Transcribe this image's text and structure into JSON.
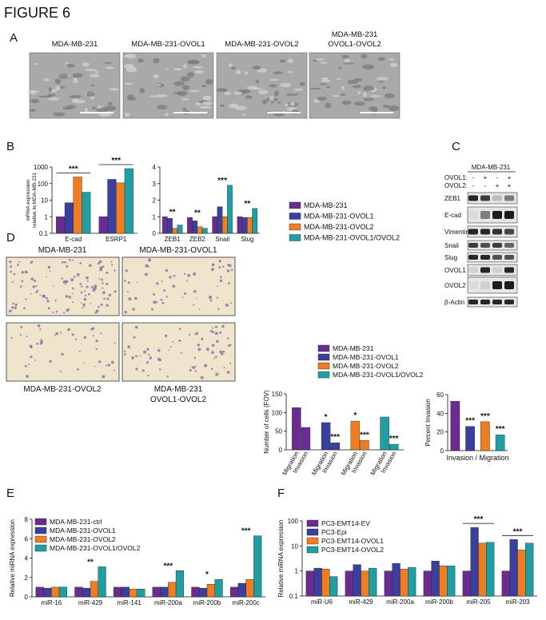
{
  "figure_title": "FIGURE 6",
  "panel_labels": [
    "A",
    "B",
    "C",
    "D",
    "E",
    "F"
  ],
  "panel_a": {
    "captions": [
      [
        "MDA-MB-231"
      ],
      [
        "MDA-MB-231-OVOL1"
      ],
      [
        "MDA-MB-231-OVOL2"
      ],
      [
        "MDA-MB-231",
        "OVOL1-OVOL2"
      ]
    ]
  },
  "blot": {
    "cell_line": "MDA-MB-231",
    "conditions": [
      {
        "label": "OVOL1:",
        "lanes": [
          "-",
          "+",
          "-",
          "+"
        ]
      },
      {
        "label": "OVOL2:",
        "lanes": [
          "-",
          "-",
          "+",
          "+"
        ]
      }
    ],
    "rows": [
      "ZEB1",
      "E-cad",
      "Vimentin",
      "Snail",
      "Slug",
      "OVOL1",
      "OVOL2",
      "β-Actin"
    ]
  },
  "panel_d": {
    "captions": [
      [
        "MDA-MB-231"
      ],
      [
        "MDA-MB-231-OVOL1"
      ],
      [
        "MDA-MB-231-OVOL2"
      ],
      [
        "MDA-MB-231",
        "OVOL1-OVOL2"
      ]
    ]
  },
  "chart_data": [
    {
      "type": "bar",
      "ylabel": [
        "mRNA expression",
        "relative to MDA-MB-231"
      ],
      "log_scale": true,
      "categories": [
        "E-cad",
        "ESRP1"
      ],
      "series": [
        {
          "name": "MDA-MB-231",
          "color": "#6a2c91",
          "values": [
            1,
            1
          ]
        },
        {
          "name": "MDA-MB-231-OVOL1",
          "color": "#3b3f9e",
          "values": [
            7,
            180
          ]
        },
        {
          "name": "MDA-MB-231-OVOL2",
          "color": "#f07d22",
          "values": [
            250,
            110
          ]
        },
        {
          "name": "MDA-MB-231-OVOL1/OVOL2",
          "color": "#1f9ea3",
          "values": [
            30,
            800
          ]
        }
      ],
      "ylim": [
        0.1,
        1000
      ],
      "yticks": [
        0.1,
        1,
        10,
        100,
        1000
      ],
      "significance": [
        "***",
        "***"
      ]
    },
    {
      "type": "bar",
      "categories": [
        "ZEB1",
        "ZEB2",
        "Snail",
        "Slug"
      ],
      "series": [
        {
          "color": "#6a2c91",
          "values": [
            1.0,
            0.95,
            1.0,
            1.0
          ]
        },
        {
          "color": "#3b3f9e",
          "values": [
            0.9,
            0.75,
            1.6,
            0.95
          ]
        },
        {
          "color": "#f07d22",
          "values": [
            0.3,
            0.4,
            1.0,
            0.95
          ]
        },
        {
          "color": "#1f9ea3",
          "values": [
            0.5,
            0.3,
            2.9,
            1.5
          ]
        }
      ],
      "ylim": [
        0,
        4
      ],
      "yticks": [
        0,
        1,
        2,
        3,
        4
      ],
      "significance": [
        "**",
        "**",
        "***",
        "**"
      ]
    },
    {
      "type": "bar",
      "ylabel": "Number of cells (FOV)",
      "categories": [
        "Migration",
        "Invasion"
      ],
      "series": [
        {
          "name": "MDA-MB-231",
          "color": "#6a2c91",
          "values": [
            113,
            60
          ],
          "significance": [
            null,
            null
          ]
        },
        {
          "name": "MDA-MB-231-OVOL1",
          "color": "#3b3f9e",
          "values": [
            73,
            19
          ],
          "significance": [
            "*",
            "***"
          ]
        },
        {
          "name": "MDA-MB-231-OVOL2",
          "color": "#f07d22",
          "values": [
            77,
            25
          ],
          "significance": [
            "*",
            "***"
          ]
        },
        {
          "name": "MDA-MB-231-OVOL1/OVOL2",
          "color": "#1f9ea3",
          "values": [
            88,
            15
          ],
          "significance": [
            null,
            "***"
          ]
        }
      ],
      "ylim": [
        0,
        150
      ],
      "yticks": [
        0,
        50,
        100,
        150
      ]
    },
    {
      "type": "bar",
      "ylabel": "Percent Invasion",
      "xlabel": "Invasion / Migration",
      "colors": [
        "#6a2c91",
        "#3b3f9e",
        "#f07d22",
        "#1f9ea3"
      ],
      "values": [
        53,
        26,
        31,
        17
      ],
      "significance": [
        null,
        "***",
        "***",
        "***"
      ],
      "ylim": [
        0,
        60
      ],
      "yticks": [
        0,
        20,
        40,
        60
      ]
    },
    {
      "type": "bar",
      "ylabel": "Relative miRNA expression",
      "categories": [
        "miR-16",
        "miR-429",
        "miR-141",
        "miR-200a",
        "miR-200b",
        "miR-200c"
      ],
      "series": [
        {
          "name": "MDA-MB-231-ctrl",
          "color": "#6a2c91",
          "values": [
            1.0,
            1.0,
            1.0,
            1.0,
            1.0,
            1.0
          ]
        },
        {
          "name": "MDA-MB-231-OVOL1",
          "color": "#3b3f9e",
          "values": [
            0.9,
            0.9,
            1.0,
            1.0,
            0.9,
            1.4
          ]
        },
        {
          "name": "MDA-MB-231-OVOL2",
          "color": "#f07d22",
          "values": [
            1.0,
            1.6,
            0.8,
            1.5,
            1.3,
            1.8
          ]
        },
        {
          "name": "MDA-MB-231-OVOL1/OVOL2",
          "color": "#1f9ea3",
          "values": [
            1.0,
            3.1,
            0.8,
            2.7,
            1.8,
            6.3
          ]
        }
      ],
      "ylim": [
        0,
        8
      ],
      "yticks": [
        0,
        2,
        4,
        6,
        8
      ],
      "significance": [
        null,
        "**",
        null,
        "***",
        "*",
        "***"
      ]
    },
    {
      "type": "bar",
      "ylabel": "Relative miRNA expression",
      "log_scale": true,
      "categories": [
        "miR-U6",
        "miR-429",
        "miR-200a",
        "miR-200b",
        "miR-205",
        "miR-203"
      ],
      "series": [
        {
          "name": "PC3-EMT14-EV",
          "color": "#6a2c91",
          "values": [
            1,
            1,
            1,
            1,
            1,
            1
          ]
        },
        {
          "name": "PC3-Epi",
          "color": "#3b3f9e",
          "values": [
            1.3,
            1.8,
            2.0,
            2.5,
            55,
            18
          ]
        },
        {
          "name": "PC3-EMT14-OVOL1",
          "color": "#f07d22",
          "values": [
            1.2,
            1.0,
            1.2,
            1.6,
            13,
            7
          ]
        },
        {
          "name": "PC3-EMT14-OVOL2",
          "color": "#1f9ea3",
          "values": [
            0.6,
            1.3,
            1.4,
            1.6,
            14,
            13
          ]
        }
      ],
      "ylim": [
        0.1,
        100
      ],
      "yticks": [
        0.1,
        1,
        10,
        100
      ],
      "significance": [
        null,
        null,
        null,
        null,
        "***",
        "***"
      ]
    }
  ]
}
